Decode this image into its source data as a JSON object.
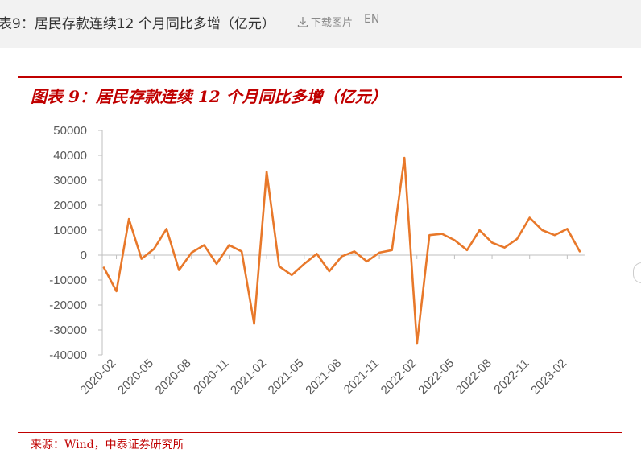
{
  "header": {
    "title": "表9：居民存款连续12 个月同比多增（亿元）",
    "download_label": "下载图片",
    "lang_label": "EN",
    "download_icon": "download-icon"
  },
  "figure": {
    "title": "图表 9：居民存款连续 12 个月同比多增（亿元）",
    "source": "来源：Wind，中泰证券研究所"
  },
  "colors": {
    "line": "#e8782a",
    "accent_red": "#c00000",
    "axis": "#bfbfbf",
    "tick_text": "#595959"
  },
  "chart_data": {
    "type": "line",
    "title": "图表 9：居民存款连续 12 个月同比多增（亿元）",
    "xlabel": "",
    "ylabel": "",
    "ylim": [
      -40000,
      50000
    ],
    "yticks": [
      50000,
      40000,
      30000,
      20000,
      10000,
      0,
      -10000,
      -20000,
      -30000,
      -40000
    ],
    "xticks": [
      "2020-02",
      "2020-05",
      "2020-08",
      "2020-11",
      "2021-02",
      "2021-05",
      "2021-08",
      "2021-11",
      "2022-02",
      "2022-05",
      "2022-08",
      "2022-11",
      "2023-02"
    ],
    "grid": false,
    "legend": "none",
    "x": [
      "2020-01",
      "2020-02",
      "2020-03",
      "2020-04",
      "2020-05",
      "2020-06",
      "2020-07",
      "2020-08",
      "2020-09",
      "2020-10",
      "2020-11",
      "2020-12",
      "2021-01",
      "2021-02",
      "2021-03",
      "2021-04",
      "2021-05",
      "2021-06",
      "2021-07",
      "2021-08",
      "2021-09",
      "2021-10",
      "2021-11",
      "2021-12",
      "2022-01",
      "2022-02",
      "2022-03",
      "2022-04",
      "2022-05",
      "2022-06",
      "2022-07",
      "2022-08",
      "2022-09",
      "2022-10",
      "2022-11",
      "2022-12",
      "2023-01",
      "2023-02",
      "2023-03"
    ],
    "values": [
      -5000,
      -14500,
      14500,
      -1500,
      2500,
      10500,
      -6000,
      1000,
      4000,
      -3500,
      4000,
      1500,
      -27500,
      33500,
      -4500,
      -8000,
      -3500,
      500,
      -6500,
      -500,
      1500,
      -2500,
      1000,
      2000,
      39000,
      -35500,
      8000,
      8500,
      6000,
      2000,
      10000,
      5000,
      3000,
      6500,
      15000,
      10000,
      8000,
      10500,
      1500
    ],
    "series": [
      {
        "values_ref": "values"
      }
    ]
  }
}
